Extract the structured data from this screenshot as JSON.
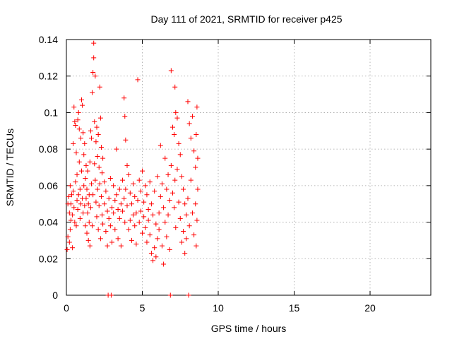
{
  "chart_data": {
    "type": "scatter",
    "title": "Day 111 of 2021, SRMTID for receiver p425",
    "xlabel": "GPS time / hours",
    "ylabel": "SRMTID / TECUs",
    "xlim": [
      0,
      24
    ],
    "ylim": [
      0,
      0.14
    ],
    "xticks": [
      0,
      5,
      10,
      15,
      20
    ],
    "xtick_labels": [
      "0",
      "5",
      "10",
      "15",
      "20"
    ],
    "yticks": [
      0,
      0.02,
      0.04,
      0.06,
      0.08,
      0.1,
      0.12,
      0.14
    ],
    "ytick_labels": [
      "0",
      "0.02",
      "0.04",
      "0.06",
      "0.08",
      "0.1",
      "0.12",
      "0.14"
    ],
    "grid": true,
    "marker": "plus",
    "color": "#ff0000",
    "series": [
      {
        "points": [
          [
            0.05,
            0.025
          ],
          [
            0.1,
            0.05
          ],
          [
            0.1,
            0.032
          ],
          [
            0.15,
            0.054
          ],
          [
            0.2,
            0.045
          ],
          [
            0.2,
            0.029
          ],
          [
            0.25,
            0.06
          ],
          [
            0.25,
            0.036
          ],
          [
            0.3,
            0.05
          ],
          [
            0.3,
            0.041
          ],
          [
            0.35,
            0.055
          ],
          [
            0.4,
            0.044
          ],
          [
            0.4,
            0.026
          ],
          [
            0.45,
            0.083
          ],
          [
            0.45,
            0.057
          ],
          [
            0.5,
            0.103
          ],
          [
            0.5,
            0.048
          ],
          [
            0.55,
            0.095
          ],
          [
            0.55,
            0.04
          ],
          [
            0.6,
            0.093
          ],
          [
            0.6,
            0.062
          ],
          [
            0.65,
            0.078
          ],
          [
            0.65,
            0.038
          ],
          [
            0.7,
            0.066
          ],
          [
            0.7,
            0.052
          ],
          [
            0.75,
            0.096
          ],
          [
            0.75,
            0.047
          ],
          [
            0.8,
            0.1
          ],
          [
            0.8,
            0.055
          ],
          [
            0.85,
            0.091
          ],
          [
            0.85,
            0.073
          ],
          [
            0.9,
            0.058
          ],
          [
            0.9,
            0.042
          ],
          [
            0.95,
            0.086
          ],
          [
            0.95,
            0.05
          ],
          [
            1.0,
            0.107
          ],
          [
            1.0,
            0.068
          ],
          [
            1.05,
            0.104
          ],
          [
            1.05,
            0.053
          ],
          [
            1.1,
            0.089
          ],
          [
            1.1,
            0.045
          ],
          [
            1.15,
            0.077
          ],
          [
            1.15,
            0.06
          ],
          [
            1.2,
            0.083
          ],
          [
            1.2,
            0.049
          ],
          [
            1.25,
            0.064
          ],
          [
            1.25,
            0.038
          ],
          [
            1.3,
            0.071
          ],
          [
            1.3,
            0.053
          ],
          [
            1.35,
            0.058
          ],
          [
            1.35,
            0.034
          ],
          [
            1.4,
            0.068
          ],
          [
            1.4,
            0.045
          ],
          [
            1.45,
            0.05
          ],
          [
            1.45,
            0.03
          ],
          [
            1.5,
            0.055
          ],
          [
            1.5,
            0.04
          ],
          [
            1.55,
            0.073
          ],
          [
            1.55,
            0.027
          ],
          [
            1.6,
            0.09
          ],
          [
            1.6,
            0.048
          ],
          [
            1.65,
            0.086
          ],
          [
            1.65,
            0.061
          ],
          [
            1.7,
            0.111
          ],
          [
            1.7,
            0.038
          ],
          [
            1.75,
            0.122
          ],
          [
            1.75,
            0.055
          ],
          [
            1.8,
            0.138
          ],
          [
            1.8,
            0.13
          ],
          [
            1.85,
            0.095
          ],
          [
            1.85,
            0.072
          ],
          [
            1.9,
            0.12
          ],
          [
            1.9,
            0.063
          ],
          [
            1.95,
            0.084
          ],
          [
            1.95,
            0.051
          ],
          [
            2.0,
            0.092
          ],
          [
            2.0,
            0.043
          ],
          [
            2.05,
            0.076
          ],
          [
            2.05,
            0.058
          ],
          [
            2.1,
            0.088
          ],
          [
            2.1,
            0.036
          ],
          [
            2.15,
            0.07
          ],
          [
            2.15,
            0.049
          ],
          [
            2.2,
            0.114
          ],
          [
            2.2,
            0.061
          ],
          [
            2.25,
            0.097
          ],
          [
            2.25,
            0.031
          ],
          [
            2.3,
            0.081
          ],
          [
            2.3,
            0.054
          ],
          [
            2.35,
            0.067
          ],
          [
            2.35,
            0.044
          ],
          [
            2.4,
            0.075
          ],
          [
            2.4,
            0.039
          ],
          [
            2.5,
            0.062
          ],
          [
            2.5,
            0.05
          ],
          [
            2.6,
            0.057
          ],
          [
            2.6,
            0.035
          ],
          [
            2.7,
            0.046
          ],
          [
            2.7,
            0.027
          ],
          [
            2.8,
            0.053
          ],
          [
            2.8,
            0.042
          ],
          [
            2.9,
            0.064
          ],
          [
            2.9,
            0.038
          ],
          [
            3.0,
            0.048
          ],
          [
            3.0,
            0.029
          ],
          [
            3.1,
            0.06
          ],
          [
            3.1,
            0.045
          ],
          [
            3.2,
            0.052
          ],
          [
            3.2,
            0.036
          ],
          [
            3.3,
            0.08
          ],
          [
            3.3,
            0.055
          ],
          [
            3.4,
            0.047
          ],
          [
            3.4,
            0.031
          ],
          [
            3.5,
            0.058
          ],
          [
            3.5,
            0.042
          ],
          [
            3.6,
            0.05
          ],
          [
            3.6,
            0.027
          ],
          [
            3.7,
            0.063
          ],
          [
            3.7,
            0.046
          ],
          [
            3.8,
            0.108
          ],
          [
            3.8,
            0.053
          ],
          [
            3.85,
            0.098
          ],
          [
            3.85,
            0.04
          ],
          [
            3.9,
            0.085
          ],
          [
            3.9,
            0.058
          ],
          [
            4.0,
            0.071
          ],
          [
            4.0,
            0.049
          ],
          [
            4.1,
            0.066
          ],
          [
            4.1,
            0.036
          ],
          [
            4.2,
            0.056
          ],
          [
            4.2,
            0.041
          ],
          [
            4.3,
            0.05
          ],
          [
            4.3,
            0.03
          ],
          [
            4.4,
            0.061
          ],
          [
            4.4,
            0.044
          ],
          [
            4.5,
            0.054
          ],
          [
            4.5,
            0.038
          ],
          [
            4.6,
            0.045
          ],
          [
            4.6,
            0.028
          ],
          [
            4.7,
            0.118
          ],
          [
            4.7,
            0.052
          ],
          [
            4.8,
            0.063
          ],
          [
            4.8,
            0.04
          ],
          [
            4.9,
            0.057
          ],
          [
            4.9,
            0.046
          ],
          [
            5.0,
            0.068
          ],
          [
            5.0,
            0.034
          ],
          [
            5.1,
            0.051
          ],
          [
            5.1,
            0.043
          ],
          [
            5.2,
            0.06
          ],
          [
            5.2,
            0.037
          ],
          [
            5.3,
            0.055
          ],
          [
            5.3,
            0.029
          ],
          [
            5.4,
            0.047
          ],
          [
            5.4,
            0.041
          ],
          [
            5.5,
            0.062
          ],
          [
            5.5,
            0.033
          ],
          [
            5.6,
            0.05
          ],
          [
            5.6,
            0.023
          ],
          [
            5.7,
            0.044
          ],
          [
            5.7,
            0.019
          ],
          [
            5.8,
            0.057
          ],
          [
            5.8,
            0.026
          ],
          [
            5.9,
            0.039
          ],
          [
            5.9,
            0.021
          ],
          [
            6.0,
            0.065
          ],
          [
            6.0,
            0.031
          ],
          [
            6.1,
            0.045
          ],
          [
            6.1,
            0.036
          ],
          [
            6.2,
            0.082
          ],
          [
            6.2,
            0.054
          ],
          [
            6.3,
            0.061
          ],
          [
            6.3,
            0.027
          ],
          [
            6.4,
            0.048
          ],
          [
            6.4,
            0.017
          ],
          [
            6.5,
            0.075
          ],
          [
            6.5,
            0.04
          ],
          [
            6.6,
            0.058
          ],
          [
            6.6,
            0.032
          ],
          [
            6.7,
            0.066
          ],
          [
            6.7,
            0.044
          ],
          [
            6.8,
            0.052
          ],
          [
            6.8,
            0.025
          ],
          [
            6.9,
            0.123
          ],
          [
            6.9,
            0.071
          ],
          [
            7.0,
            0.092
          ],
          [
            7.0,
            0.056
          ],
          [
            7.1,
            0.088
          ],
          [
            7.1,
            0.048
          ],
          [
            7.15,
            0.114
          ],
          [
            7.15,
            0.063
          ],
          [
            7.2,
            0.1
          ],
          [
            7.2,
            0.037
          ],
          [
            7.3,
            0.097
          ],
          [
            7.3,
            0.069
          ],
          [
            7.4,
            0.083
          ],
          [
            7.4,
            0.051
          ],
          [
            7.5,
            0.077
          ],
          [
            7.5,
            0.042
          ],
          [
            7.6,
            0.065
          ],
          [
            7.6,
            0.029
          ],
          [
            7.7,
            0.058
          ],
          [
            7.7,
            0.035
          ],
          [
            7.8,
            0.05
          ],
          [
            7.8,
            0.023
          ],
          [
            7.9,
            0.044
          ],
          [
            7.9,
            0.031
          ],
          [
            8.0,
            0.106
          ],
          [
            8.0,
            0.053
          ],
          [
            8.1,
            0.094
          ],
          [
            8.1,
            0.038
          ],
          [
            8.2,
            0.086
          ],
          [
            8.2,
            0.063
          ],
          [
            8.3,
            0.098
          ],
          [
            8.3,
            0.045
          ],
          [
            8.4,
            0.079
          ],
          [
            8.4,
            0.033
          ],
          [
            8.5,
            0.07
          ],
          [
            8.5,
            0.05
          ],
          [
            8.55,
            0.088
          ],
          [
            8.55,
            0.027
          ],
          [
            8.6,
            0.103
          ],
          [
            8.6,
            0.041
          ],
          [
            8.65,
            0.075
          ],
          [
            8.65,
            0.058
          ],
          [
            2.75,
            0
          ],
          [
            2.95,
            0
          ],
          [
            6.85,
            0
          ],
          [
            8.05,
            0
          ]
        ]
      }
    ]
  }
}
